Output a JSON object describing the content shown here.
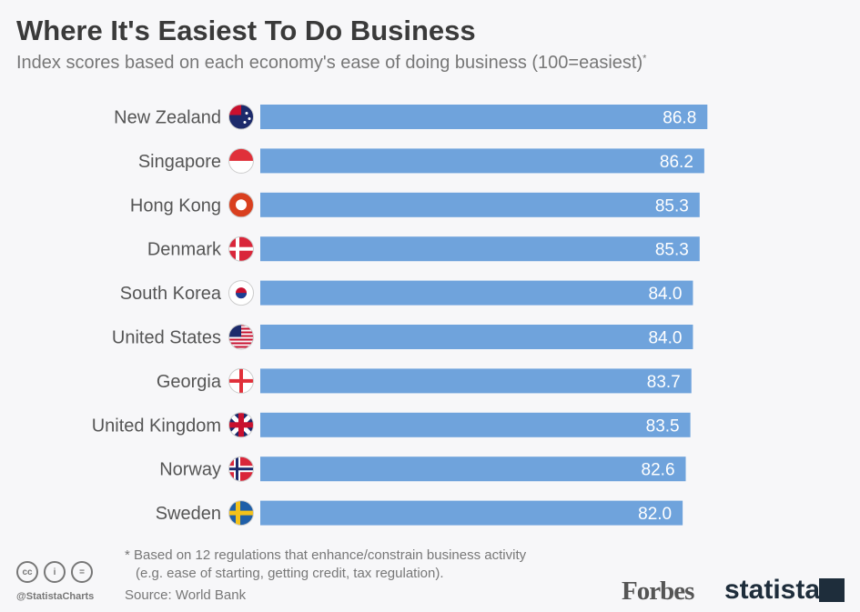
{
  "chart_data": {
    "type": "bar",
    "orientation": "horizontal",
    "title": "Where It's Easiest To Do Business",
    "subtitle": "Index scores based on each economy's ease of doing business (100=easiest)",
    "subtitle_mark": "*",
    "categories": [
      "New Zealand",
      "Singapore",
      "Hong Kong",
      "Denmark",
      "South Korea",
      "United States",
      "Georgia",
      "United Kingdom",
      "Norway",
      "Sweden"
    ],
    "values": [
      86.8,
      86.2,
      85.3,
      85.3,
      84.0,
      84.0,
      83.7,
      83.5,
      82.6,
      82.0
    ],
    "value_labels": [
      "86.8",
      "86.2",
      "85.3",
      "85.3",
      "84.0",
      "84.0",
      "83.7",
      "83.5",
      "82.6",
      "82.0"
    ],
    "flag_icons": [
      "new-zealand-flag-icon",
      "singapore-flag-icon",
      "hong-kong-flag-icon",
      "denmark-flag-icon",
      "south-korea-flag-icon",
      "united-states-flag-icon",
      "georgia-flag-icon",
      "united-kingdom-flag-icon",
      "norway-flag-icon",
      "sweden-flag-icon"
    ],
    "xlim": [
      0,
      100
    ],
    "grid": false,
    "bar_color": "#6fa3dc"
  },
  "footer": {
    "note_line1": "* Based on 12 regulations that enhance/constrain business activity",
    "note_line2": "(e.g. ease of starting, getting credit, tax regulation).",
    "source": "Source: World Bank",
    "handle": "@StatistaCharts",
    "cc_icons": [
      "cc",
      "i",
      "="
    ],
    "forbes_logo": "Forbes",
    "statista_logo": "statista"
  }
}
